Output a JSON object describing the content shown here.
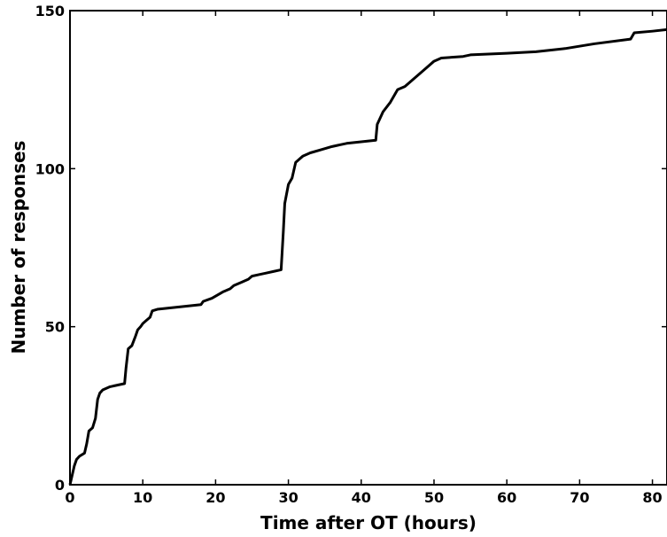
{
  "chart_data": {
    "type": "line",
    "title": "",
    "xlabel": "Time after OT (hours)",
    "ylabel": "Number of responses",
    "xlim": [
      0,
      82
    ],
    "ylim": [
      0,
      150
    ],
    "x_ticks": [
      0,
      10,
      20,
      30,
      40,
      50,
      60,
      70,
      80
    ],
    "y_ticks": [
      0,
      50,
      100,
      150
    ],
    "grid": false,
    "series": [
      {
        "color": "#000000",
        "x": [
          0.0,
          0.3,
          0.6,
          0.9,
          1.3,
          2.0,
          2.3,
          2.6,
          3.1,
          3.5,
          3.8,
          4.1,
          4.5,
          5.5,
          6.5,
          7.5,
          7.7,
          8.0,
          8.5,
          9.0,
          9.3,
          9.7,
          10.0,
          10.5,
          11.0,
          11.3,
          12.0,
          14.0,
          16.0,
          18.0,
          18.3,
          19.5,
          21.0,
          22.0,
          22.5,
          23.5,
          24.5,
          25.0,
          26.0,
          27.0,
          28.0,
          29.0,
          29.3,
          29.5,
          30.0,
          30.5,
          31.0,
          31.5,
          32.0,
          33.0,
          34.5,
          36.0,
          37.0,
          38.0,
          40.0,
          42.0,
          42.2,
          43.0,
          44.0,
          45.0,
          46.0,
          47.0,
          48.0,
          49.0,
          50.0,
          51.0,
          54.0,
          55.0,
          60.0,
          64.0,
          68.0,
          72.0,
          77.0,
          77.5,
          80.0,
          82.0
        ],
        "y": [
          0,
          3,
          6,
          8,
          9,
          10,
          13,
          17,
          18,
          21,
          27,
          29,
          30,
          31,
          31.5,
          32,
          37,
          43,
          44,
          47,
          49,
          50,
          51,
          52,
          53,
          55,
          55.5,
          56,
          56.5,
          57,
          58,
          59,
          61,
          62,
          63,
          64,
          65,
          66,
          66.5,
          67,
          67.5,
          68,
          80,
          89,
          95,
          97,
          102,
          103,
          104,
          105,
          106,
          107,
          107.5,
          108,
          108.5,
          109,
          114,
          118,
          121,
          125,
          126,
          128,
          130,
          132,
          134,
          135,
          135.5,
          136,
          136.5,
          137,
          138,
          139.5,
          141,
          143,
          143.5,
          144
        ]
      }
    ]
  }
}
